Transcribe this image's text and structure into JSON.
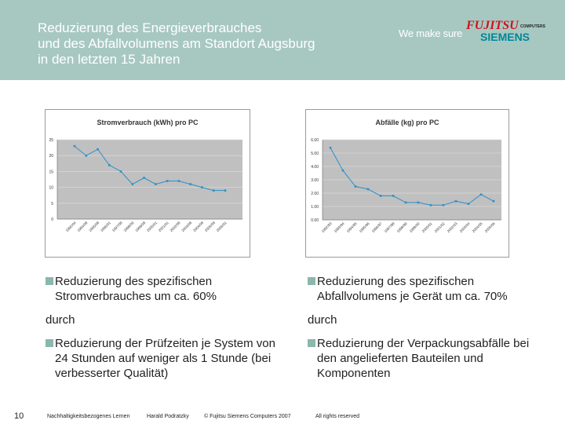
{
  "header": {
    "title_lines": [
      "Reduzierung des Energieverbrauches",
      "und des Abfallvolumens am Standort Augsburg",
      "in den letzten 15 Jahren"
    ],
    "slogan": "We make sure",
    "logo_fujitsu": "FUJITSU",
    "logo_computers": "COMPUTERS",
    "logo_siemens": "SIEMENS"
  },
  "chart_data": [
    {
      "type": "line",
      "title": "Stromverbrauch (kWh) pro PC",
      "xlabel": "",
      "ylabel": "",
      "ylim": [
        0,
        25
      ],
      "yticks": [
        "0",
        "5",
        "10",
        "15",
        "20",
        "25"
      ],
      "categories": [
        "1992/04",
        "1994/08",
        "1995/08",
        "1996/01",
        "1997/08",
        "1998/09",
        "1999/08",
        "2000/01",
        "2001/01",
        "2002/08",
        "2003/08",
        "2004/08",
        "2005/08",
        "2006/01"
      ],
      "values": [
        23,
        20,
        22,
        17,
        15,
        11,
        13,
        11,
        12,
        12,
        11,
        10,
        9,
        9
      ],
      "color": "#2e8fc7",
      "grid": true,
      "legend": "none"
    },
    {
      "type": "line",
      "title": "Abfälle (kg) pro PC",
      "xlabel": "",
      "ylabel": "",
      "ylim": [
        0,
        6
      ],
      "yticks": [
        "0.00",
        "1.00",
        "2.00",
        "3.00",
        "4.00",
        "5.00",
        "6.00"
      ],
      "categories": [
        "1992/93",
        "1993/94",
        "1994/95",
        "1995/96",
        "1996/97",
        "1997/98",
        "1998/99",
        "1999/00",
        "2000/01",
        "2001/02",
        "2002/03",
        "2003/04",
        "2004/05",
        "2005/06"
      ],
      "values": [
        5.4,
        3.7,
        2.5,
        2.3,
        1.8,
        1.8,
        1.3,
        1.3,
        1.1,
        1.1,
        1.4,
        1.2,
        1.9,
        1.4
      ],
      "color": "#2e8fc7",
      "grid": true,
      "legend": "none"
    }
  ],
  "bullets": {
    "left_1": "Reduzierung des spezifischen Stromverbrauches um ca. 60%",
    "left_durch": "durch",
    "left_2": "Reduzierung der Prüfzeiten je System von 24 Stunden auf weniger als 1 Stunde (bei verbesserter Qualität)",
    "right_1": "Reduzierung des spezifischen Abfallvolumens je Gerät um ca. 70%",
    "right_durch": "durch",
    "right_2": "Reduzierung der Verpackungsabfälle bei den angelieferten Bauteilen und Komponenten"
  },
  "footer": {
    "page_number": "10",
    "topic": "Nachhaltigkeitsbezogenes Lernen",
    "author": "Harald Podratzky",
    "copyright": "© Fujitsu Siemens Computers 2007",
    "rights": "All rights reserved"
  },
  "colors": {
    "header_bg": "#a7c8c1",
    "bullet": "#8bb7ad",
    "plot_bg": "#c0c0c0",
    "series": "#2e8fc7",
    "logo_red": "#d0121b",
    "logo_teal": "#00879a"
  }
}
